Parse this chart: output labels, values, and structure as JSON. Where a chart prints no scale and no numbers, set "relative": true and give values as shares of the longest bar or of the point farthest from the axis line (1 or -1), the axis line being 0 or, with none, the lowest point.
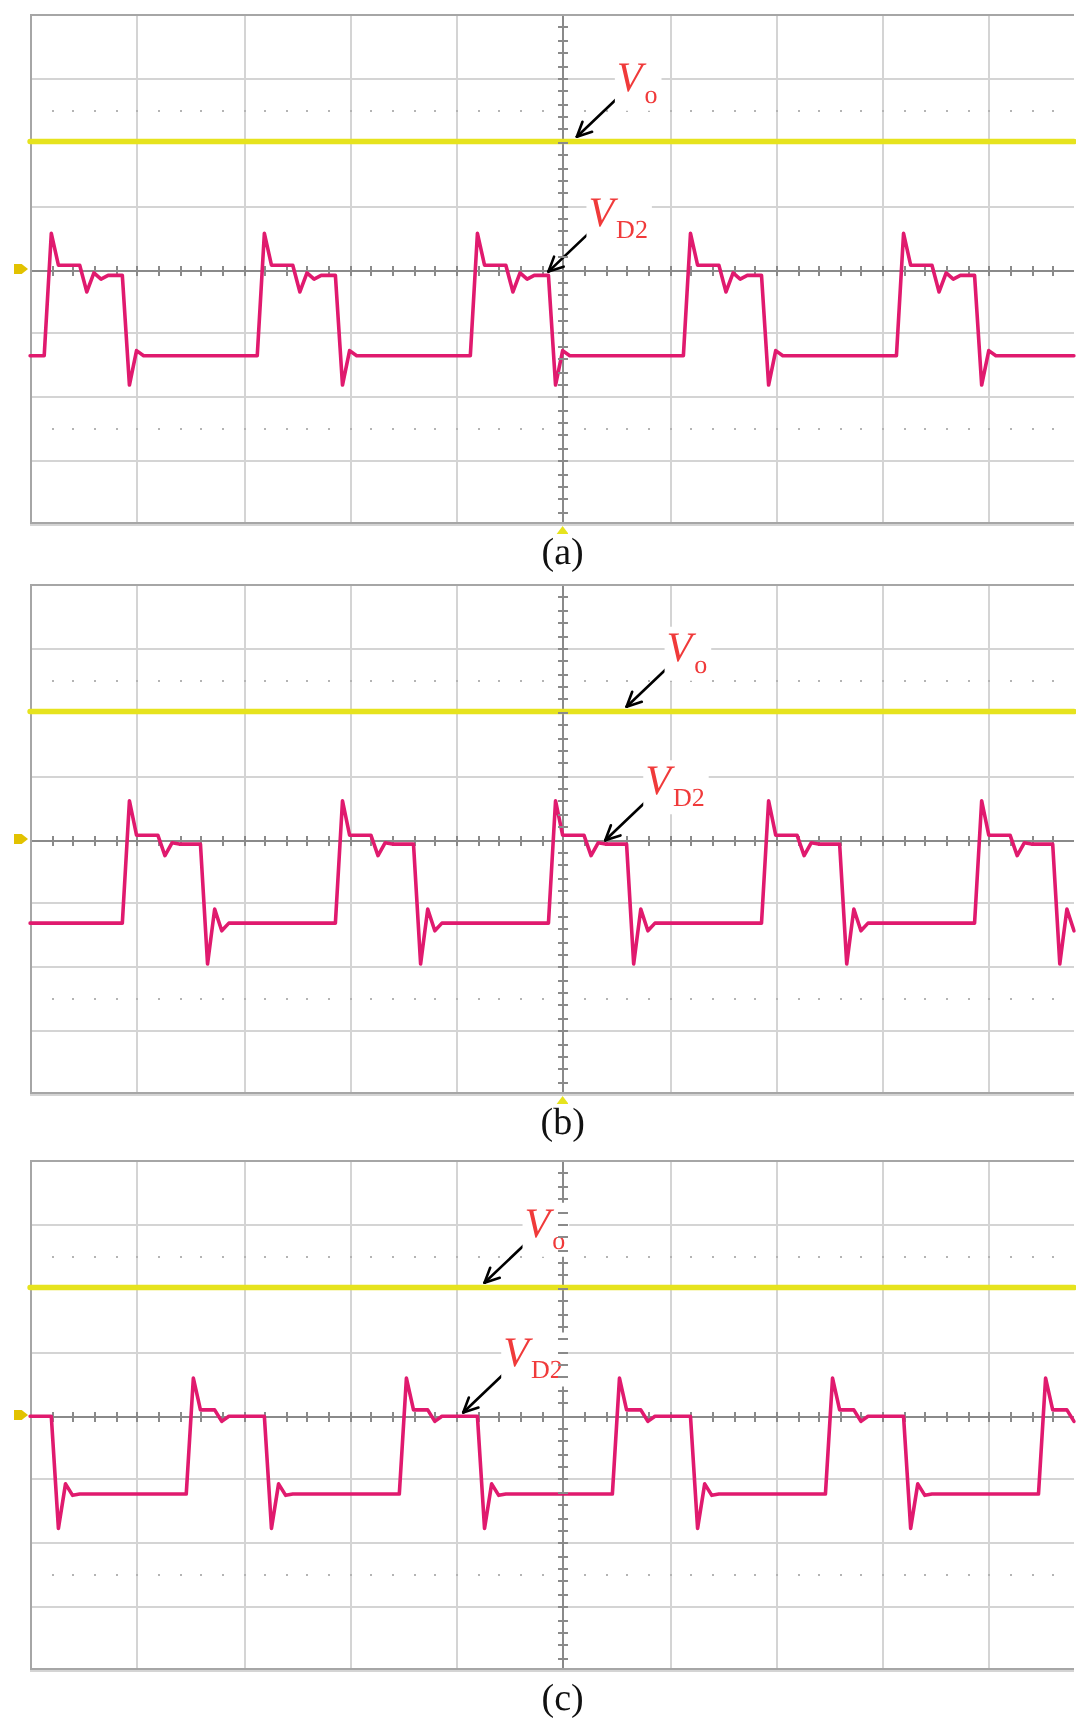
{
  "chart_data": [
    {
      "type": "line",
      "title": "(a)",
      "relative": true,
      "grid": true,
      "categories": [
        null,
        null,
        null,
        null,
        null,
        null,
        null,
        null,
        null,
        null,
        null,
        null,
        null,
        null,
        null,
        null,
        null,
        null,
        null,
        null,
        null,
        null,
        null,
        null,
        null,
        null,
        null,
        null,
        null,
        null,
        null,
        null,
        null,
        null,
        null,
        null,
        null,
        null,
        null,
        null,
        null,
        null,
        null,
        null,
        null,
        null,
        null,
        null,
        null,
        null,
        null,
        null,
        null,
        null,
        null,
        null,
        null,
        null,
        null,
        null,
        null,
        null,
        null,
        null,
        null,
        null,
        null,
        null,
        null,
        null,
        null,
        null,
        null,
        null,
        null,
        null,
        null,
        null,
        null,
        null,
        null,
        null,
        null,
        null,
        null,
        null,
        null,
        null,
        null,
        null,
        null,
        null,
        null,
        null,
        null,
        null,
        null,
        null,
        null,
        null,
        null,
        null,
        null,
        null,
        null,
        null,
        null,
        null,
        null,
        null,
        null,
        null,
        null,
        null,
        null,
        null,
        null,
        null,
        null,
        null,
        null,
        null,
        null,
        null,
        null,
        null,
        null,
        null,
        null,
        null,
        null,
        null,
        null,
        null,
        null,
        null,
        null,
        null,
        null,
        null,
        null,
        null,
        null,
        null,
        null,
        null,
        null,
        null
      ],
      "series": [
        {
          "name": "V$_{o}$",
          "color": "#e6e31e",
          "values": [
            1,
            1,
            1,
            1,
            1,
            1,
            1,
            1,
            1,
            1,
            1,
            1,
            1,
            1,
            1,
            1,
            1,
            1,
            1,
            1,
            1,
            1,
            1,
            1,
            1,
            1,
            1,
            1,
            1,
            1,
            1,
            1,
            1,
            1,
            1,
            1,
            1,
            1,
            1,
            1,
            1,
            1,
            1,
            1,
            1,
            1,
            1,
            1,
            1,
            1,
            1,
            1,
            1,
            1,
            1,
            1,
            1,
            1,
            1,
            1,
            1,
            1,
            1,
            1,
            1,
            1,
            1,
            1,
            1,
            1,
            1,
            1,
            1,
            1,
            1,
            1,
            1,
            1,
            1,
            1,
            1,
            1,
            1,
            1,
            1,
            1,
            1,
            1,
            1,
            1,
            1,
            1,
            1,
            1,
            1,
            1,
            1,
            1,
            1,
            1,
            1,
            1,
            1,
            1,
            1,
            1,
            1,
            1,
            1,
            1,
            1,
            1,
            1,
            1,
            1,
            1,
            1,
            1,
            1,
            1,
            1,
            1,
            1,
            1,
            1,
            1,
            1,
            1,
            1,
            1,
            1,
            1,
            1,
            1,
            1,
            1,
            1,
            1,
            1,
            1,
            1,
            1,
            1,
            1,
            1,
            1,
            1,
            1
          ]
        },
        {
          "name": "V$_{D2}$",
          "color": "#e01a6e",
          "values": [
            -0.68,
            -0.68,
            -0.68,
            0.28,
            0.03,
            0.03,
            0.03,
            0.03,
            -0.18,
            -0.03,
            -0.08,
            -0.05,
            -0.05,
            -0.05,
            -0.91,
            -0.64,
            -0.68,
            -0.68,
            -0.68,
            -0.68,
            -0.68,
            -0.68,
            -0.68,
            -0.68,
            -0.68,
            -0.68,
            -0.68,
            -0.68,
            -0.68,
            -0.68,
            -0.68,
            -0.68,
            -0.68,
            0.28,
            0.03,
            0.03,
            0.03,
            0.03,
            -0.18,
            -0.03,
            -0.08,
            -0.05,
            -0.05,
            -0.05,
            -0.91,
            -0.64,
            -0.68,
            -0.68,
            -0.68,
            -0.68,
            -0.68,
            -0.68,
            -0.68,
            -0.68,
            -0.68,
            -0.68,
            -0.68,
            -0.68,
            -0.68,
            -0.68,
            -0.68,
            -0.68,
            -0.68,
            0.28,
            0.03,
            0.03,
            0.03,
            0.03,
            -0.18,
            -0.03,
            -0.08,
            -0.05,
            -0.05,
            -0.05,
            -0.91,
            -0.64,
            -0.68,
            -0.68,
            -0.68,
            -0.68,
            -0.68,
            -0.68,
            -0.68,
            -0.68,
            -0.68,
            -0.68,
            -0.68,
            -0.68,
            -0.68,
            -0.68,
            -0.68,
            -0.68,
            -0.68,
            0.28,
            0.03,
            0.03,
            0.03,
            0.03,
            -0.18,
            -0.03,
            -0.08,
            -0.05,
            -0.05,
            -0.05,
            -0.91,
            -0.64,
            -0.68,
            -0.68,
            -0.68,
            -0.68,
            -0.68,
            -0.68,
            -0.68,
            -0.68,
            -0.68,
            -0.68,
            -0.68,
            -0.68,
            -0.68,
            -0.68,
            -0.68,
            -0.68,
            -0.68,
            0.28,
            0.03,
            0.03,
            0.03,
            0.03,
            -0.18,
            -0.03,
            -0.08,
            -0.05,
            -0.05,
            -0.05,
            -0.91,
            -0.64,
            -0.68,
            -0.68,
            -0.68,
            -0.68,
            -0.68,
            -0.68,
            -0.68,
            -0.68,
            -0.68,
            -0.68,
            -0.68,
            -0.68
          ]
        }
      ]
    },
    {
      "type": "line",
      "title": "(b)",
      "relative": true,
      "grid": true,
      "categories": [
        null,
        null,
        null,
        null,
        null,
        null,
        null,
        null,
        null,
        null,
        null,
        null,
        null,
        null,
        null,
        null,
        null,
        null,
        null,
        null,
        null,
        null,
        null,
        null,
        null,
        null,
        null,
        null,
        null,
        null,
        null,
        null,
        null,
        null,
        null,
        null,
        null,
        null,
        null,
        null,
        null,
        null,
        null,
        null,
        null,
        null,
        null,
        null,
        null,
        null,
        null,
        null,
        null,
        null,
        null,
        null,
        null,
        null,
        null,
        null,
        null,
        null,
        null,
        null,
        null,
        null,
        null,
        null,
        null,
        null,
        null,
        null,
        null,
        null,
        null,
        null,
        null,
        null,
        null,
        null,
        null,
        null,
        null,
        null,
        null,
        null,
        null,
        null,
        null,
        null,
        null,
        null,
        null,
        null,
        null,
        null,
        null,
        null,
        null,
        null,
        null,
        null,
        null,
        null,
        null,
        null,
        null,
        null,
        null,
        null,
        null,
        null,
        null,
        null,
        null,
        null,
        null,
        null,
        null,
        null,
        null,
        null,
        null,
        null,
        null,
        null,
        null,
        null,
        null,
        null,
        null,
        null,
        null,
        null,
        null,
        null,
        null,
        null,
        null,
        null,
        null,
        null,
        null,
        null,
        null,
        null,
        null,
        null
      ],
      "series": [
        {
          "name": "V$_{o}$",
          "color": "#e6e31e",
          "values": [
            1,
            1,
            1,
            1,
            1,
            1,
            1,
            1,
            1,
            1,
            1,
            1,
            1,
            1,
            1,
            1,
            1,
            1,
            1,
            1,
            1,
            1,
            1,
            1,
            1,
            1,
            1,
            1,
            1,
            1,
            1,
            1,
            1,
            1,
            1,
            1,
            1,
            1,
            1,
            1,
            1,
            1,
            1,
            1,
            1,
            1,
            1,
            1,
            1,
            1,
            1,
            1,
            1,
            1,
            1,
            1,
            1,
            1,
            1,
            1,
            1,
            1,
            1,
            1,
            1,
            1,
            1,
            1,
            1,
            1,
            1,
            1,
            1,
            1,
            1,
            1,
            1,
            1,
            1,
            1,
            1,
            1,
            1,
            1,
            1,
            1,
            1,
            1,
            1,
            1,
            1,
            1,
            1,
            1,
            1,
            1,
            1,
            1,
            1,
            1,
            1,
            1,
            1,
            1,
            1,
            1,
            1,
            1,
            1,
            1,
            1,
            1,
            1,
            1,
            1,
            1,
            1,
            1,
            1,
            1,
            1,
            1,
            1,
            1,
            1,
            1,
            1,
            1,
            1,
            1,
            1,
            1,
            1,
            1,
            1,
            1,
            1,
            1,
            1,
            1,
            1,
            1,
            1,
            1,
            1,
            1,
            1,
            1
          ]
        },
        {
          "name": "V$_{D2}$",
          "color": "#e01a6e",
          "values": [
            -0.66,
            -0.66,
            -0.66,
            -0.66,
            -0.66,
            -0.66,
            -0.66,
            -0.66,
            -0.66,
            -0.66,
            -0.66,
            -0.66,
            -0.66,
            -0.66,
            0.3,
            0.03,
            0.03,
            0.03,
            0.03,
            -0.13,
            -0.03,
            -0.04,
            -0.04,
            -0.04,
            -0.04,
            -0.98,
            -0.55,
            -0.72,
            -0.66,
            -0.66,
            -0.66,
            -0.66,
            -0.66,
            -0.66,
            -0.66,
            -0.66,
            -0.66,
            -0.66,
            -0.66,
            -0.66,
            -0.66,
            -0.66,
            -0.66,
            -0.66,
            0.3,
            0.03,
            0.03,
            0.03,
            0.03,
            -0.13,
            -0.03,
            -0.04,
            -0.04,
            -0.04,
            -0.04,
            -0.98,
            -0.55,
            -0.72,
            -0.66,
            -0.66,
            -0.66,
            -0.66,
            -0.66,
            -0.66,
            -0.66,
            -0.66,
            -0.66,
            -0.66,
            -0.66,
            -0.66,
            -0.66,
            -0.66,
            -0.66,
            -0.66,
            0.3,
            0.03,
            0.03,
            0.03,
            0.03,
            -0.13,
            -0.03,
            -0.04,
            -0.04,
            -0.04,
            -0.04,
            -0.98,
            -0.55,
            -0.72,
            -0.66,
            -0.66,
            -0.66,
            -0.66,
            -0.66,
            -0.66,
            -0.66,
            -0.66,
            -0.66,
            -0.66,
            -0.66,
            -0.66,
            -0.66,
            -0.66,
            -0.66,
            -0.66,
            0.3,
            0.03,
            0.03,
            0.03,
            0.03,
            -0.13,
            -0.03,
            -0.04,
            -0.04,
            -0.04,
            -0.04,
            -0.98,
            -0.55,
            -0.72,
            -0.66,
            -0.66,
            -0.66,
            -0.66,
            -0.66,
            -0.66,
            -0.66,
            -0.66,
            -0.66,
            -0.66,
            -0.66,
            -0.66,
            -0.66,
            -0.66,
            -0.66,
            -0.66,
            0.3,
            0.03,
            0.03,
            0.03,
            0.03,
            -0.13,
            -0.03,
            -0.04,
            -0.04,
            -0.04,
            -0.04,
            -0.98,
            -0.55,
            -0.72
          ]
        }
      ]
    },
    {
      "type": "line",
      "title": "(c)",
      "relative": true,
      "grid": true,
      "categories": [
        null,
        null,
        null,
        null,
        null,
        null,
        null,
        null,
        null,
        null,
        null,
        null,
        null,
        null,
        null,
        null,
        null,
        null,
        null,
        null,
        null,
        null,
        null,
        null,
        null,
        null,
        null,
        null,
        null,
        null,
        null,
        null,
        null,
        null,
        null,
        null,
        null,
        null,
        null,
        null,
        null,
        null,
        null,
        null,
        null,
        null,
        null,
        null,
        null,
        null,
        null,
        null,
        null,
        null,
        null,
        null,
        null,
        null,
        null,
        null,
        null,
        null,
        null,
        null,
        null,
        null,
        null,
        null,
        null,
        null,
        null,
        null,
        null,
        null,
        null,
        null,
        null,
        null,
        null,
        null,
        null,
        null,
        null,
        null,
        null,
        null,
        null,
        null,
        null,
        null,
        null,
        null,
        null,
        null,
        null,
        null,
        null,
        null,
        null,
        null,
        null,
        null,
        null,
        null,
        null,
        null,
        null,
        null,
        null,
        null,
        null,
        null,
        null,
        null,
        null,
        null,
        null,
        null,
        null,
        null,
        null,
        null,
        null,
        null,
        null,
        null,
        null,
        null,
        null,
        null,
        null,
        null,
        null,
        null,
        null,
        null,
        null,
        null,
        null,
        null,
        null,
        null,
        null,
        null,
        null,
        null,
        null,
        null
      ],
      "series": [
        {
          "name": "V$_{o}$",
          "color": "#e6e31e",
          "values": [
            1,
            1,
            1,
            1,
            1,
            1,
            1,
            1,
            1,
            1,
            1,
            1,
            1,
            1,
            1,
            1,
            1,
            1,
            1,
            1,
            1,
            1,
            1,
            1,
            1,
            1,
            1,
            1,
            1,
            1,
            1,
            1,
            1,
            1,
            1,
            1,
            1,
            1,
            1,
            1,
            1,
            1,
            1,
            1,
            1,
            1,
            1,
            1,
            1,
            1,
            1,
            1,
            1,
            1,
            1,
            1,
            1,
            1,
            1,
            1,
            1,
            1,
            1,
            1,
            1,
            1,
            1,
            1,
            1,
            1,
            1,
            1,
            1,
            1,
            1,
            1,
            1,
            1,
            1,
            1,
            1,
            1,
            1,
            1,
            1,
            1,
            1,
            1,
            1,
            1,
            1,
            1,
            1,
            1,
            1,
            1,
            1,
            1,
            1,
            1,
            1,
            1,
            1,
            1,
            1,
            1,
            1,
            1,
            1,
            1,
            1,
            1,
            1,
            1,
            1,
            1,
            1,
            1,
            1,
            1,
            1,
            1,
            1,
            1,
            1,
            1,
            1,
            1,
            1,
            1,
            1,
            1,
            1,
            1,
            1,
            1,
            1,
            1,
            1,
            1,
            1,
            1,
            1,
            1,
            1,
            1,
            1,
            1
          ]
        },
        {
          "name": "V$_{D2}$",
          "color": "#e01a6e",
          "values": [
            -0.01,
            -0.01,
            -0.01,
            -0.01,
            -0.89,
            -0.54,
            -0.63,
            -0.62,
            -0.62,
            -0.62,
            -0.62,
            -0.62,
            -0.62,
            -0.62,
            -0.62,
            -0.62,
            -0.62,
            -0.62,
            -0.62,
            -0.62,
            -0.62,
            -0.62,
            -0.62,
            0.29,
            0.04,
            0.04,
            0.04,
            -0.05,
            -0.01,
            -0.01,
            -0.01,
            -0.01,
            -0.01,
            -0.01,
            -0.89,
            -0.54,
            -0.63,
            -0.62,
            -0.62,
            -0.62,
            -0.62,
            -0.62,
            -0.62,
            -0.62,
            -0.62,
            -0.62,
            -0.62,
            -0.62,
            -0.62,
            -0.62,
            -0.62,
            -0.62,
            -0.62,
            0.29,
            0.04,
            0.04,
            0.04,
            -0.05,
            -0.01,
            -0.01,
            -0.01,
            -0.01,
            -0.01,
            -0.01,
            -0.89,
            -0.54,
            -0.63,
            -0.62,
            -0.62,
            -0.62,
            -0.62,
            -0.62,
            -0.62,
            -0.62,
            -0.62,
            -0.62,
            -0.62,
            -0.62,
            -0.62,
            -0.62,
            -0.62,
            -0.62,
            -0.62,
            0.29,
            0.04,
            0.04,
            0.04,
            -0.05,
            -0.01,
            -0.01,
            -0.01,
            -0.01,
            -0.01,
            -0.01,
            -0.89,
            -0.54,
            -0.63,
            -0.62,
            -0.62,
            -0.62,
            -0.62,
            -0.62,
            -0.62,
            -0.62,
            -0.62,
            -0.62,
            -0.62,
            -0.62,
            -0.62,
            -0.62,
            -0.62,
            -0.62,
            -0.62,
            0.29,
            0.04,
            0.04,
            0.04,
            -0.05,
            -0.01,
            -0.01,
            -0.01,
            -0.01,
            -0.01,
            -0.01,
            -0.89,
            -0.54,
            -0.63,
            -0.62,
            -0.62,
            -0.62,
            -0.62,
            -0.62,
            -0.62,
            -0.62,
            -0.62,
            -0.62,
            -0.62,
            -0.62,
            -0.62,
            -0.62,
            -0.62,
            -0.62,
            -0.62,
            0.29,
            0.04,
            0.04,
            0.04,
            -0.05
          ]
        }
      ]
    }
  ]
}
